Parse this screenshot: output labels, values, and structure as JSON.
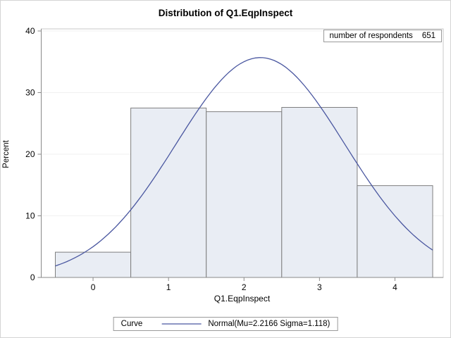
{
  "title": "Distribution of Q1.EqpInspect",
  "inset": {
    "label": "number of respondents",
    "value": "651"
  },
  "axes": {
    "xlabel": "Q1.EqpInspect",
    "ylabel": "Percent"
  },
  "legend": {
    "title": "Curve",
    "entry": "Normal(Mu=2.2166 Sigma=1.118)"
  },
  "chart_data": {
    "type": "bar",
    "subtype": "histogram-with-normal-curve",
    "title": "Distribution of Q1.EqpInspect",
    "xlabel": "Q1.EqpInspect",
    "ylabel": "Percent",
    "xlim": [
      -0.5,
      4.5
    ],
    "ylim": [
      0,
      40
    ],
    "x_ticks": [
      0,
      1,
      2,
      3,
      4
    ],
    "y_ticks": [
      0,
      10,
      20,
      30,
      40
    ],
    "bin_centers": [
      0,
      1,
      2,
      3,
      4
    ],
    "bin_width": 1,
    "categories": [
      "0",
      "1",
      "2",
      "3",
      "4"
    ],
    "values": [
      4.1,
      27.5,
      26.9,
      27.6,
      14.9
    ],
    "n_respondents": 651,
    "curve": {
      "type": "normal",
      "mu": 2.2166,
      "sigma": 1.118,
      "label": "Normal(Mu=2.2166 Sigma=1.118)"
    },
    "grid": "horizontal-light",
    "legend_position": "bottom-center",
    "colors": {
      "bar_fill": "#e9edf4",
      "bar_stroke": "#7f7f7f",
      "curve": "#4a57a0",
      "grid": "#f0f0f0",
      "axis": "#8a8a8a",
      "border": "#c9c9c9",
      "text": "#000000"
    }
  }
}
